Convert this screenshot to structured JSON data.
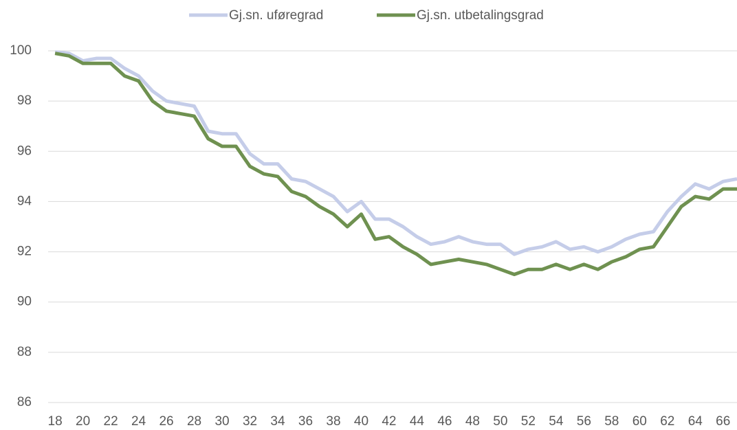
{
  "chart_data": {
    "type": "line",
    "x": [
      18,
      19,
      20,
      21,
      22,
      23,
      24,
      25,
      26,
      27,
      28,
      29,
      30,
      31,
      32,
      33,
      34,
      35,
      36,
      37,
      38,
      39,
      40,
      41,
      42,
      43,
      44,
      45,
      46,
      47,
      48,
      49,
      50,
      51,
      52,
      53,
      54,
      55,
      56,
      57,
      58,
      59,
      60,
      61,
      62,
      63,
      64,
      65,
      66,
      67
    ],
    "series": [
      {
        "name": "Gj.sn. uføregrad",
        "color": "#c5cde9",
        "values": [
          99.95,
          99.9,
          99.6,
          99.7,
          99.7,
          99.3,
          99.0,
          98.4,
          98.0,
          97.9,
          97.8,
          96.8,
          96.7,
          96.7,
          95.9,
          95.5,
          95.5,
          94.9,
          94.8,
          94.5,
          94.2,
          93.6,
          94.0,
          93.3,
          93.3,
          93.0,
          92.6,
          92.3,
          92.4,
          92.6,
          92.4,
          92.3,
          92.3,
          91.9,
          92.1,
          92.2,
          92.4,
          92.1,
          92.2,
          92.0,
          92.2,
          92.5,
          92.7,
          92.8,
          93.6,
          94.2,
          94.7,
          94.5,
          94.8,
          94.9
        ]
      },
      {
        "name": "Gj.sn. utbetalingsgrad",
        "color": "#6f9150",
        "values": [
          99.9,
          99.8,
          99.5,
          99.5,
          99.5,
          99.0,
          98.8,
          98.0,
          97.6,
          97.5,
          97.4,
          96.5,
          96.2,
          96.2,
          95.4,
          95.1,
          95.0,
          94.4,
          94.2,
          93.8,
          93.5,
          93.0,
          93.5,
          92.5,
          92.6,
          92.2,
          91.9,
          91.5,
          91.6,
          91.7,
          91.6,
          91.5,
          91.3,
          91.1,
          91.3,
          91.3,
          91.5,
          91.3,
          91.5,
          91.3,
          91.6,
          91.8,
          92.1,
          92.2,
          93.0,
          93.8,
          94.2,
          94.1,
          94.5,
          94.5
        ]
      }
    ],
    "xlim": [
      17.5,
      67
    ],
    "xticks": [
      18,
      20,
      22,
      24,
      26,
      28,
      30,
      32,
      34,
      36,
      38,
      40,
      42,
      44,
      46,
      48,
      50,
      52,
      54,
      56,
      58,
      60,
      62,
      64,
      66
    ],
    "ylim": [
      86,
      100
    ],
    "yticks": [
      86,
      88,
      90,
      92,
      94,
      96,
      98,
      100
    ],
    "grid": true,
    "legend": "top"
  }
}
